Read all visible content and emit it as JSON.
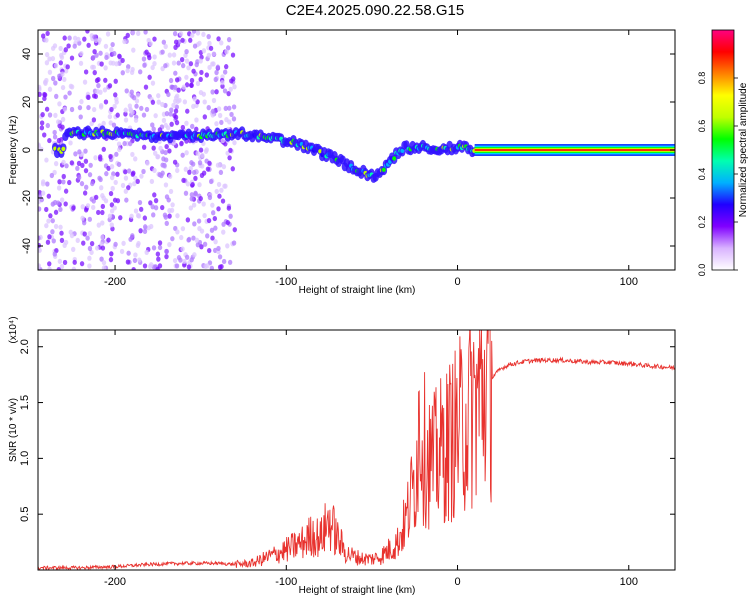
{
  "figure_title": "C2E4.2025.090.22.58.G15",
  "colors": {
    "snr_line": "#e8322e",
    "axis": "#000000",
    "frame": "#000000",
    "background": "#ffffff",
    "colorbar_stops": [
      "#ffffff",
      "#d9b3ff",
      "#8000ff",
      "#2000ff",
      "#00b0ff",
      "#00ffb0",
      "#00ff00",
      "#c0ff00",
      "#ffff00",
      "#ff8000",
      "#ff0000",
      "#ff0080"
    ]
  },
  "chart_data": [
    {
      "type": "heatmap",
      "title": "",
      "xlabel": "Height of straight line (km)",
      "ylabel": "Frequency (Hz)",
      "xlim": [
        -245,
        127
      ],
      "ylim": [
        -50,
        50
      ],
      "xticks": [
        -200,
        -100,
        0,
        100
      ],
      "yticks": [
        -40,
        -20,
        0,
        20,
        40
      ],
      "colorbar": {
        "label": "Normalized spectral amplitude",
        "range": [
          0,
          1
        ],
        "ticks": [
          "0.0",
          "0.2",
          "0.4",
          "0.6",
          "0.8"
        ]
      },
      "ridge": {
        "x": [
          -230,
          -200,
          -180,
          -160,
          -140,
          -130,
          -120,
          -110,
          -100,
          -90,
          -80,
          -70,
          -60,
          -50,
          -45,
          -40,
          -35,
          -30,
          -25,
          -20,
          -10,
          0,
          5,
          10,
          50,
          127
        ],
        "frequency": [
          7,
          7,
          6,
          6,
          6,
          7,
          6,
          5,
          4,
          2,
          -1,
          -4,
          -8,
          -11,
          -9,
          -6,
          -1,
          1,
          1,
          1,
          1,
          1,
          1,
          0,
          0,
          0
        ]
      },
      "noise_region_x": [
        -245,
        -130
      ]
    },
    {
      "type": "line",
      "title": "",
      "xlabel": "Height of straight line (km)",
      "ylabel": "SNR (10 * v/v)",
      "y_scale_label": "(x10⁴)",
      "xlim": [
        -245,
        127
      ],
      "ylim": [
        0,
        2.15
      ],
      "xticks": [
        -200,
        -100,
        0,
        100
      ],
      "yticks": [
        0.5,
        1.0,
        1.5,
        2.0
      ],
      "series": [
        {
          "x": [
            -245,
            -220,
            -200,
            -180,
            -160,
            -140,
            -130,
            -120,
            -110,
            -100,
            -90,
            -85,
            -80,
            -75,
            -70,
            -65,
            -60,
            -55,
            -50,
            -45,
            -40,
            -35,
            -30,
            -25,
            -22,
            -20,
            -15,
            -10,
            -5,
            0,
            5,
            10,
            15,
            20,
            25,
            30,
            40,
            50,
            60,
            70,
            80,
            90,
            95,
            100,
            105,
            110,
            120,
            127
          ],
          "values": [
            0.02,
            0.02,
            0.03,
            0.05,
            0.06,
            0.06,
            0.05,
            0.06,
            0.12,
            0.18,
            0.25,
            0.32,
            0.28,
            0.45,
            0.28,
            0.15,
            0.12,
            0.1,
            0.1,
            0.12,
            0.18,
            0.25,
            0.45,
            0.8,
            1.4,
            1.1,
            0.95,
            1.05,
            1.15,
            1.25,
            1.35,
            1.5,
            1.62,
            1.72,
            1.8,
            1.84,
            1.87,
            1.88,
            1.88,
            1.87,
            1.86,
            1.86,
            1.85,
            1.85,
            1.84,
            1.83,
            1.82,
            1.81
          ]
        }
      ]
    }
  ]
}
